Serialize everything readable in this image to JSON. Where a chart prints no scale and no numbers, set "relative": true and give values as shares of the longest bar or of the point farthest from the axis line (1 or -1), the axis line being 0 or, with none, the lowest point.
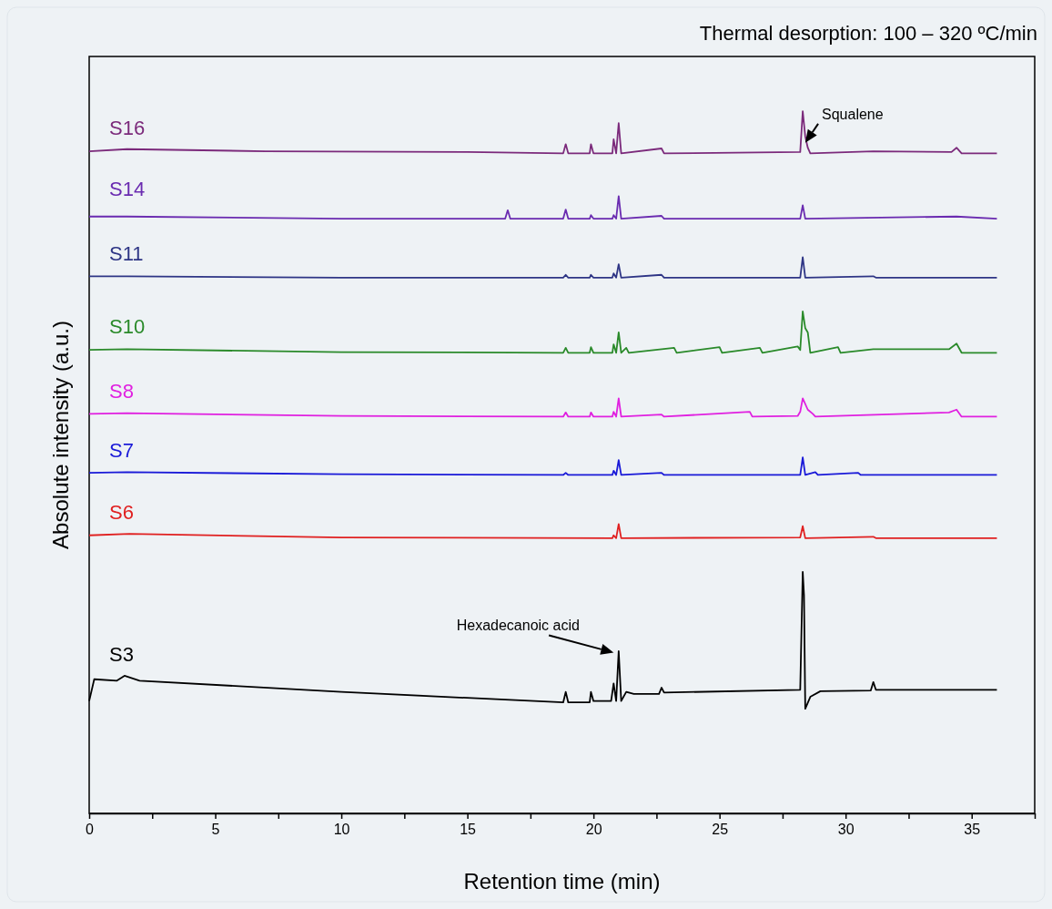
{
  "chart_data": {
    "type": "line",
    "relative": true,
    "title": "Thermal desorption: 100 – 320 ºC/min",
    "xlabel": "Retention time (min)",
    "ylabel": "Absolute intensity (a.u.)",
    "xlim": [
      0,
      37.5
    ],
    "xticks": [
      0,
      {
        "value": 2.5,
        "label": null
      },
      5,
      {
        "value": 7.5,
        "label": null
      },
      10,
      {
        "value": 12.5,
        "label": null
      },
      15,
      {
        "value": 17.5,
        "label": null
      },
      20,
      {
        "value": 22.5,
        "label": null
      },
      25,
      {
        "value": 27.5,
        "label": null
      },
      30,
      {
        "value": 32.5,
        "label": null
      },
      35,
      {
        "value": 37.5,
        "label": null
      }
    ],
    "grid": false,
    "legend": false,
    "marker": "none",
    "line_style": "solid",
    "annotations": [
      {
        "text": "Squalene",
        "x": 28.4,
        "y": 0.955
      },
      {
        "text": "Hexadecanoic acid",
        "x": 20.8,
        "y": 0.229
      }
    ],
    "series": [
      {
        "name": "S16",
        "color": "#7b2a7b",
        "x": [
          0,
          1.5,
          7,
          15,
          18.8,
          18.9,
          19.0,
          19.85,
          19.9,
          20.0,
          20.75,
          20.8,
          20.9,
          21.0,
          21.1,
          22.7,
          22.8,
          28.2,
          28.3,
          28.4,
          28.5,
          28.6,
          31.1,
          34.2,
          34.4,
          34.6,
          36
        ],
        "values": [
          0.943,
          0.946,
          0.943,
          0.942,
          0.94,
          0.953,
          0.94,
          0.94,
          0.953,
          0.94,
          0.94,
          0.96,
          0.94,
          0.983,
          0.94,
          0.947,
          0.94,
          0.942,
          1.0,
          0.964,
          0.948,
          0.94,
          0.943,
          0.942,
          0.948,
          0.94,
          0.94
        ]
      },
      {
        "name": "S14",
        "color": "#6a2bb0",
        "x": [
          0,
          1.5,
          10,
          16.5,
          16.6,
          16.7,
          18.8,
          18.9,
          19.0,
          19.85,
          19.9,
          20.0,
          20.75,
          20.8,
          20.9,
          21.0,
          21.1,
          22.7,
          22.8,
          28.2,
          28.3,
          28.4,
          34.4,
          36
        ],
        "values": [
          0.85,
          0.85,
          0.847,
          0.847,
          0.859,
          0.847,
          0.847,
          0.86,
          0.847,
          0.847,
          0.852,
          0.847,
          0.847,
          0.852,
          0.847,
          0.879,
          0.847,
          0.851,
          0.847,
          0.847,
          0.866,
          0.847,
          0.85,
          0.847
        ]
      },
      {
        "name": "S11",
        "color": "#2e3585",
        "x": [
          0,
          1.5,
          10,
          18.8,
          18.9,
          19.0,
          19.85,
          19.9,
          20.0,
          20.75,
          20.8,
          20.9,
          21.0,
          21.1,
          22.7,
          22.8,
          28.2,
          28.3,
          28.4,
          31.1,
          31.2,
          36
        ],
        "values": [
          0.765,
          0.765,
          0.763,
          0.763,
          0.767,
          0.763,
          0.763,
          0.767,
          0.763,
          0.763,
          0.769,
          0.763,
          0.782,
          0.763,
          0.767,
          0.763,
          0.763,
          0.792,
          0.763,
          0.765,
          0.763,
          0.763
        ]
      },
      {
        "name": "S10",
        "color": "#2a8a2a",
        "x": [
          0,
          1.5,
          10,
          18.8,
          18.9,
          19.0,
          19.85,
          19.9,
          20.0,
          20.75,
          20.8,
          20.9,
          21.0,
          21.1,
          21.3,
          21.4,
          23.2,
          23.3,
          25.0,
          25.1,
          26.6,
          26.7,
          28.1,
          28.2,
          28.3,
          28.4,
          28.5,
          28.6,
          29.7,
          29.8,
          31.1,
          31.6,
          34.1,
          34.4,
          34.6,
          36
        ],
        "values": [
          0.66,
          0.661,
          0.657,
          0.656,
          0.663,
          0.656,
          0.656,
          0.664,
          0.656,
          0.656,
          0.668,
          0.656,
          0.685,
          0.656,
          0.663,
          0.656,
          0.663,
          0.656,
          0.664,
          0.656,
          0.663,
          0.656,
          0.665,
          0.66,
          0.715,
          0.691,
          0.685,
          0.656,
          0.664,
          0.656,
          0.661,
          0.661,
          0.661,
          0.669,
          0.656,
          0.656
        ]
      },
      {
        "name": "S8",
        "color": "#e020e0",
        "x": [
          0,
          1.5,
          10,
          18.8,
          18.9,
          19.0,
          19.85,
          19.9,
          20.0,
          20.75,
          20.8,
          20.9,
          21.0,
          21.1,
          22.7,
          22.8,
          26.2,
          26.3,
          28.1,
          28.2,
          28.3,
          28.5,
          28.7,
          28.8,
          34.1,
          34.4,
          34.6,
          36
        ],
        "values": [
          0.569,
          0.57,
          0.566,
          0.565,
          0.571,
          0.565,
          0.565,
          0.571,
          0.565,
          0.565,
          0.572,
          0.565,
          0.591,
          0.565,
          0.568,
          0.565,
          0.572,
          0.565,
          0.566,
          0.572,
          0.591,
          0.575,
          0.569,
          0.565,
          0.571,
          0.575,
          0.565,
          0.565
        ]
      },
      {
        "name": "S7",
        "color": "#1a1ad8",
        "x": [
          0,
          1.5,
          10,
          18.8,
          18.9,
          19.0,
          20.75,
          20.8,
          20.9,
          21.0,
          21.1,
          22.7,
          22.8,
          28.2,
          28.3,
          28.4,
          28.8,
          28.9,
          30.5,
          30.6,
          36
        ],
        "values": [
          0.485,
          0.486,
          0.483,
          0.482,
          0.485,
          0.482,
          0.482,
          0.488,
          0.482,
          0.503,
          0.482,
          0.485,
          0.482,
          0.482,
          0.507,
          0.482,
          0.486,
          0.482,
          0.485,
          0.482,
          0.482
        ]
      },
      {
        "name": "S6",
        "color": "#e02020",
        "x": [
          0,
          1.6,
          10,
          20.75,
          20.8,
          20.9,
          21.0,
          21.1,
          28.2,
          28.3,
          28.4,
          31.1,
          31.2,
          36
        ],
        "values": [
          0.396,
          0.398,
          0.393,
          0.392,
          0.396,
          0.392,
          0.412,
          0.392,
          0.393,
          0.409,
          0.392,
          0.394,
          0.392,
          0.392
        ]
      },
      {
        "name": "S3",
        "color": "#000000",
        "x": [
          0,
          0.2,
          1.1,
          1.4,
          2.0,
          10,
          18.8,
          18.9,
          19.0,
          19.85,
          19.9,
          20.0,
          20.7,
          20.8,
          20.9,
          21.0,
          21.1,
          21.3,
          21.6,
          22.6,
          22.7,
          22.8,
          28.2,
          28.3,
          28.35,
          28.4,
          28.6,
          29.0,
          31.0,
          31.1,
          31.2,
          36
        ],
        "values": [
          0.16,
          0.191,
          0.189,
          0.196,
          0.189,
          0.173,
          0.158,
          0.173,
          0.158,
          0.158,
          0.173,
          0.16,
          0.16,
          0.185,
          0.16,
          0.231,
          0.16,
          0.173,
          0.17,
          0.17,
          0.179,
          0.172,
          0.176,
          0.344,
          0.311,
          0.149,
          0.166,
          0.174,
          0.175,
          0.187,
          0.176,
          0.176
        ]
      }
    ]
  }
}
